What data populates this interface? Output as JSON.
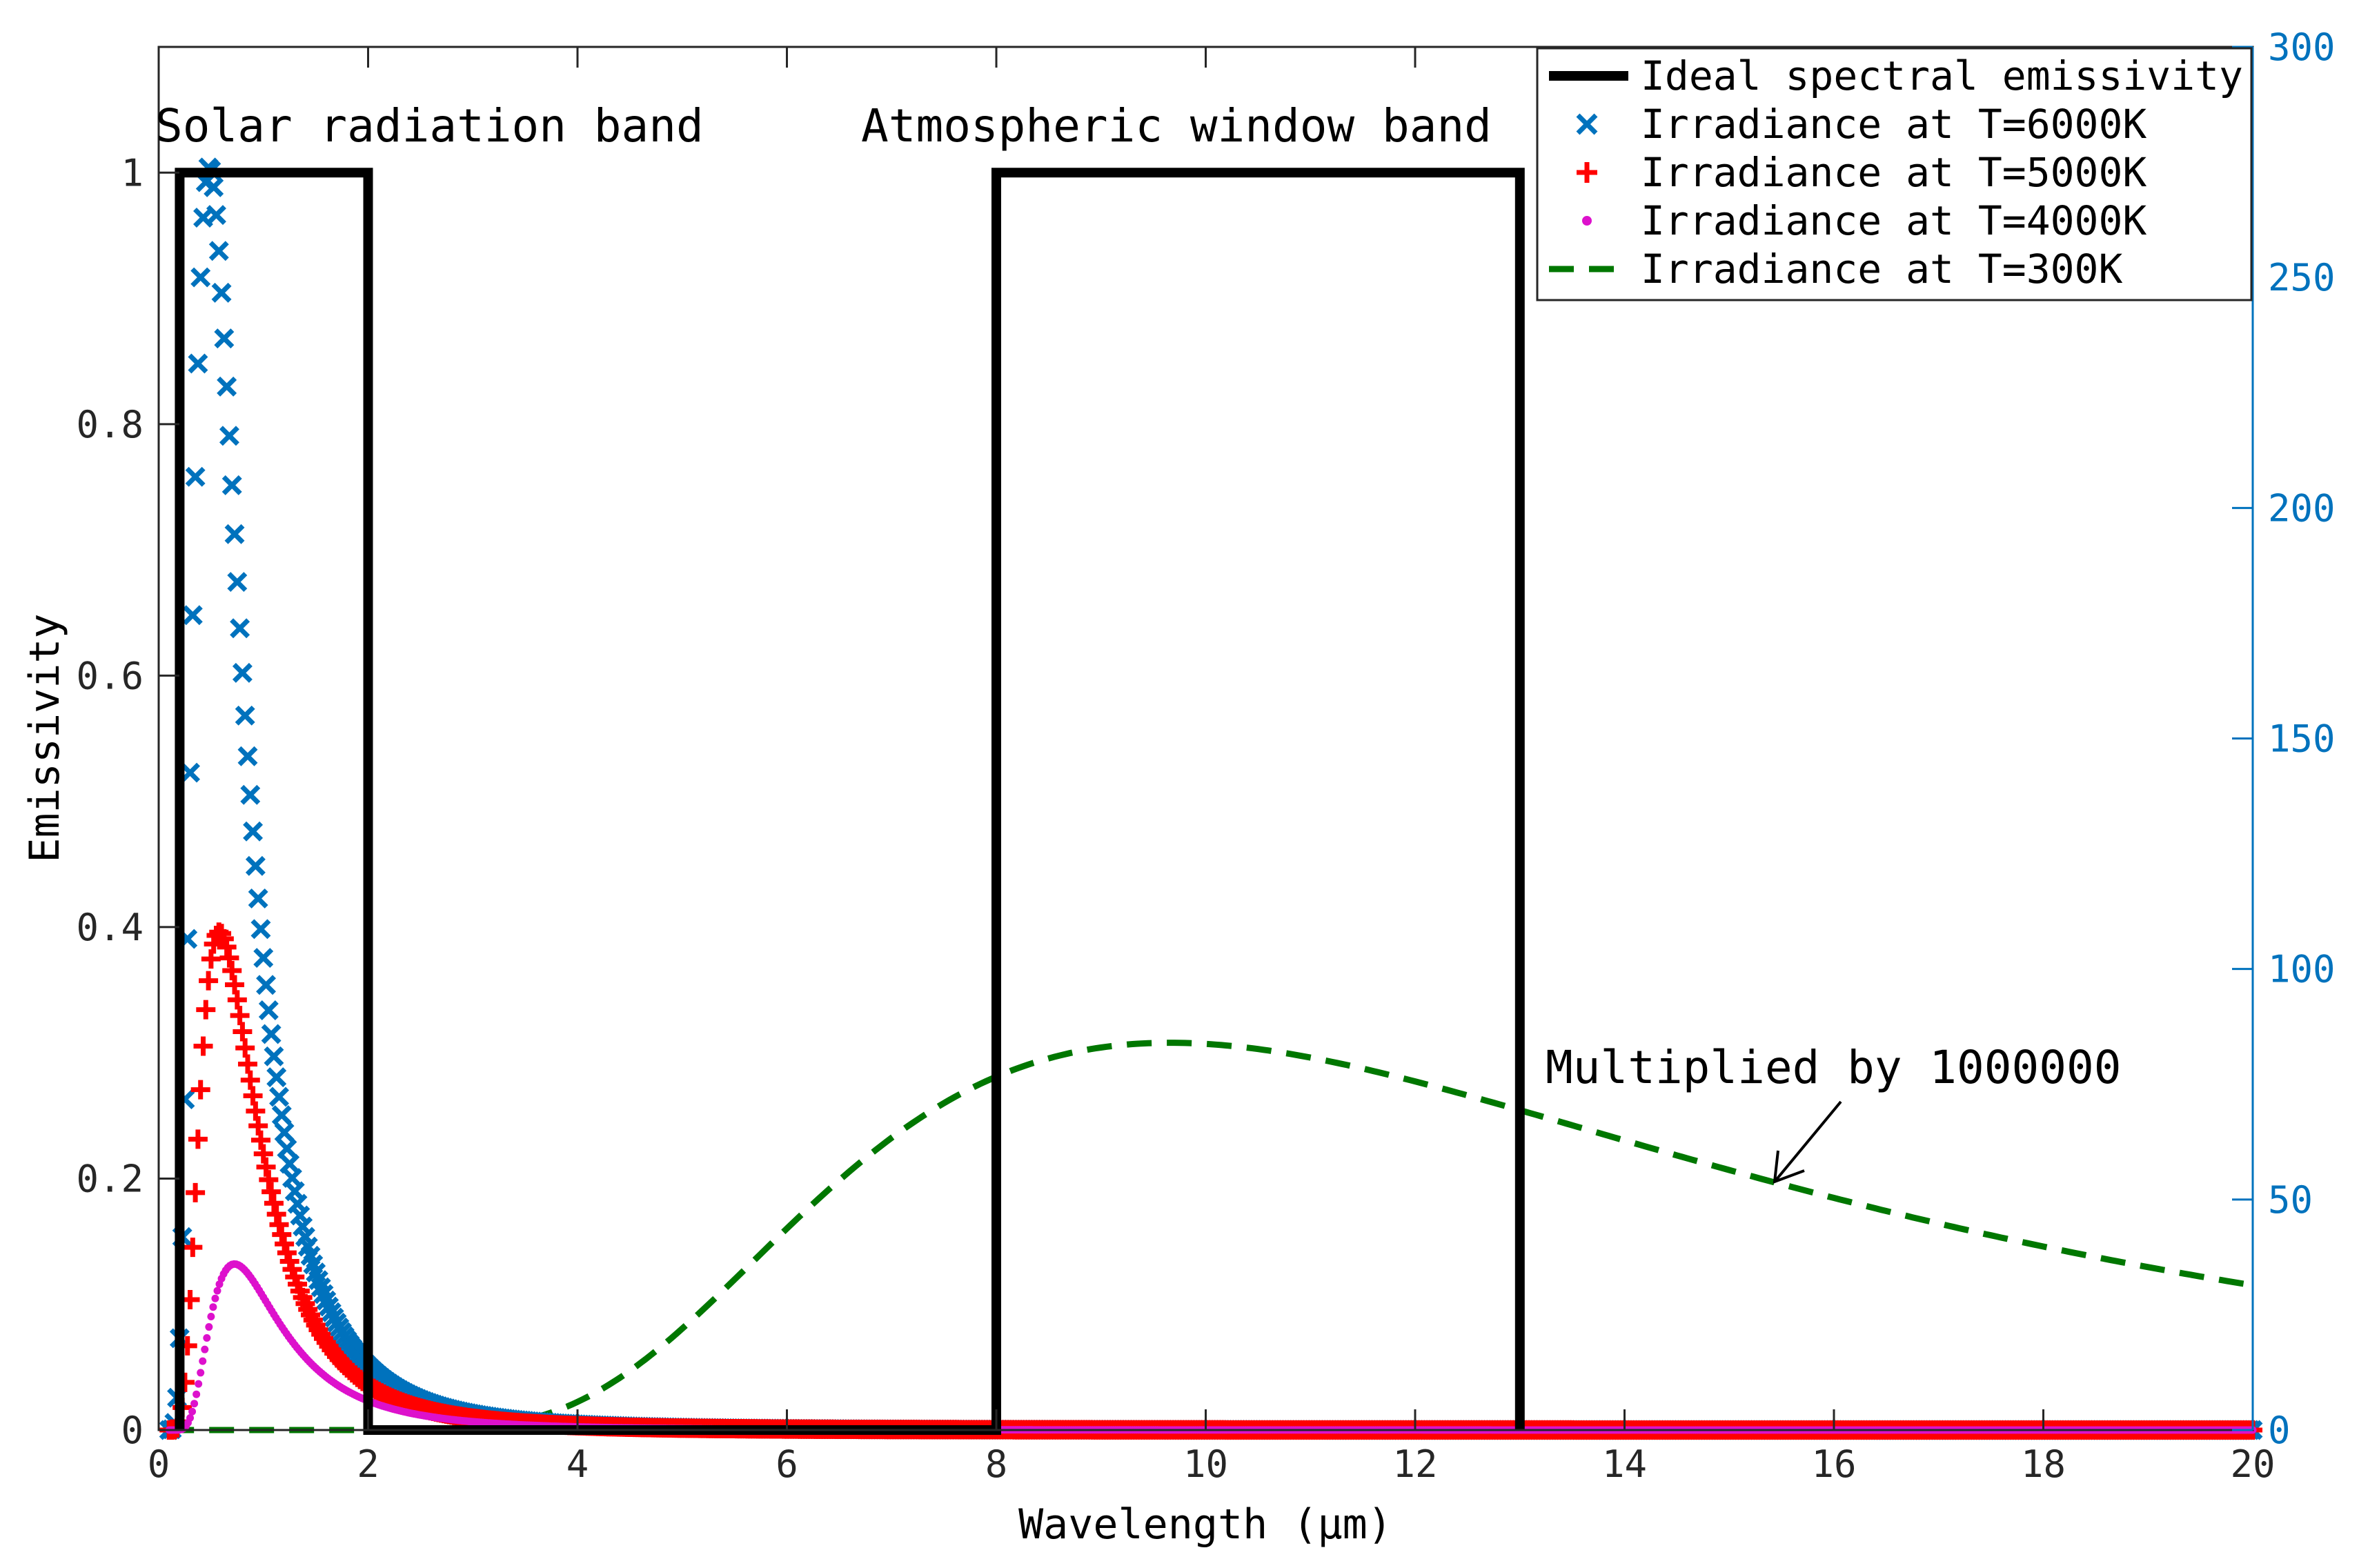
{
  "chart_data": {
    "type": "line",
    "xlabel": "Wavelength (μm)",
    "ylabel_left": "Emissivity",
    "ylabel_right": "",
    "xlim": [
      0,
      20
    ],
    "ylim_left": [
      0,
      1.1
    ],
    "ylim_right": [
      0,
      300
    ],
    "x_ticks": [
      "0",
      "2",
      "4",
      "6",
      "8",
      "10",
      "12",
      "14",
      "16",
      "18",
      "20"
    ],
    "y_left_ticks": [
      "0",
      "0.2",
      "0.4",
      "0.6",
      "0.8",
      "1"
    ],
    "y_right_ticks": [
      "0",
      "50",
      "100",
      "150",
      "200",
      "250",
      "300"
    ],
    "grid": false,
    "legend_position": "top-right",
    "colors": {
      "emissivity": "#000000",
      "t6000": "#0072BD",
      "t5000": "#FF0000",
      "t4000": "#DD11CC",
      "t300": "#007700",
      "right_axis": "#0072BD"
    },
    "series": [
      {
        "name": "Ideal spectral emissivity",
        "axis": "left",
        "style": "solid-thick",
        "x": [
          0.2,
          0.2,
          2,
          2,
          8,
          8,
          13,
          13
        ],
        "y": [
          0,
          1,
          1,
          0,
          0,
          1,
          1,
          0
        ]
      },
      {
        "name": "Irradiance at T=6000K",
        "axis": "right",
        "style": "x-marker",
        "temperature_K": 6000,
        "scale": 1,
        "peak_value": 274
      },
      {
        "name": "Irradiance at T=5000K",
        "axis": "right",
        "style": "plus-marker",
        "temperature_K": 5000,
        "scale": 1,
        "peak_value": 108
      },
      {
        "name": "Irradiance at T=4000K",
        "axis": "right",
        "style": "dot-marker",
        "temperature_K": 4000,
        "scale": 1,
        "peak_value": 36
      },
      {
        "name": "Irradiance at T=300K",
        "axis": "right",
        "style": "dashed",
        "temperature_K": 300,
        "scale": 1000000,
        "peak_value": 84
      }
    ],
    "annotations": {
      "solar_band": "Solar radiation band",
      "window_band": "Atmospheric window band",
      "multiplier": "Multiplied by 1000000"
    }
  }
}
